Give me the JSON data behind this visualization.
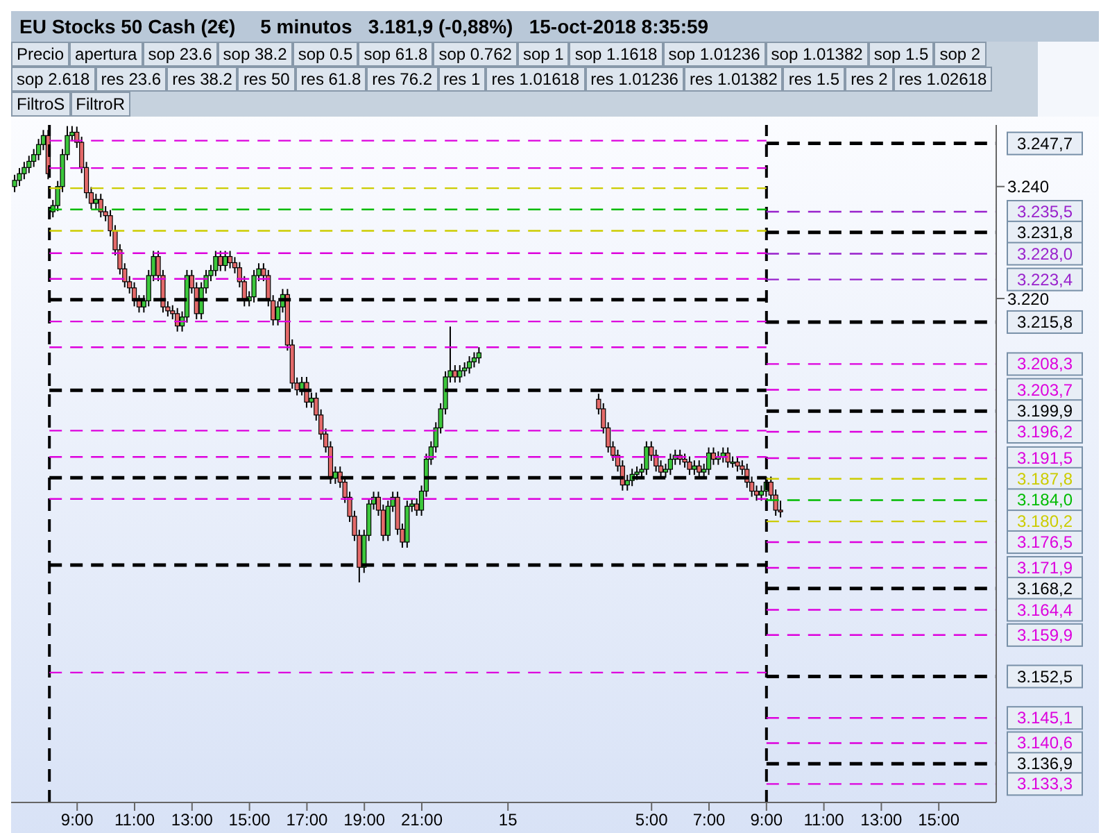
{
  "chart_data": {
    "type": "candlestick",
    "title": "EU Stocks 50 Cash (2€)",
    "subtitle": "5 minutos   3.181,9 (-0,88%)   15-oct-2018 8:35:59",
    "annotations": [
      "Precio",
      "apertura",
      "sop 23.6",
      "sop 38.2",
      "sop 0.5",
      "sop 61.8",
      "sop 0.762",
      "sop 1",
      "sop 1.1618",
      "sop 1.01236",
      "sop 1.01382",
      "sop 1.5",
      "sop 2",
      "sop 2.618",
      "res 23.6",
      "res 38.2",
      "res 50",
      "res 61.8",
      "res 76.2",
      "res 1",
      "res 1.01618",
      "res 1.01236",
      "res 1.01382",
      "res 1.5",
      "res 2",
      "res 1.02618",
      "FiltroS",
      "FiltroR"
    ],
    "xlim": [
      "2018-10-14T06:42",
      "2018-10-15T17:00"
    ],
    "ylim": [
      3130,
      3251
    ],
    "xticks": [
      {
        "value": "2018-10-14T09:00",
        "label": "9:00"
      },
      {
        "value": "2018-10-14T11:00",
        "label": "11:00"
      },
      {
        "value": "2018-10-14T13:00",
        "label": "13:00"
      },
      {
        "value": "2018-10-14T15:00",
        "label": "15:00"
      },
      {
        "value": "2018-10-14T17:00",
        "label": "17:00"
      },
      {
        "value": "2018-10-14T19:00",
        "label": "19:00"
      },
      {
        "value": "2018-10-14T21:00",
        "label": "21:00"
      },
      {
        "value": "2018-10-15T00:00",
        "label": "15"
      },
      {
        "value": "2018-10-15T05:00",
        "label": "5:00"
      },
      {
        "value": "2018-10-15T07:00",
        "label": "7:00"
      },
      {
        "value": "2018-10-15T09:00",
        "label": "9:00"
      },
      {
        "value": "2018-10-15T11:00",
        "label": "11:00"
      },
      {
        "value": "2018-10-15T13:00",
        "label": "13:00"
      },
      {
        "value": "2018-10-15T15:00",
        "label": "15:00"
      }
    ],
    "yticks": [
      {
        "value": 3240,
        "label": "3.240"
      },
      {
        "value": 3220,
        "label": "3.220"
      }
    ],
    "grid": false,
    "x": [
      "2018-10-14T06:50",
      "2018-10-14T07:00",
      "2018-10-14T07:10",
      "2018-10-14T07:20",
      "2018-10-14T07:30",
      "2018-10-14T07:40",
      "2018-10-14T07:50",
      "2018-10-14T08:00",
      "2018-10-14T08:10",
      "2018-10-14T08:20",
      "2018-10-14T08:30",
      "2018-10-14T08:40",
      "2018-10-14T08:50",
      "2018-10-14T09:00",
      "2018-10-14T09:10",
      "2018-10-14T09:20",
      "2018-10-14T09:30",
      "2018-10-14T09:40",
      "2018-10-14T09:50",
      "2018-10-14T10:00",
      "2018-10-14T10:10",
      "2018-10-14T10:20",
      "2018-10-14T10:30",
      "2018-10-14T10:40",
      "2018-10-14T10:50",
      "2018-10-14T11:00",
      "2018-10-14T11:10",
      "2018-10-14T11:20",
      "2018-10-14T11:30",
      "2018-10-14T11:40",
      "2018-10-14T11:50",
      "2018-10-14T12:00",
      "2018-10-14T12:10",
      "2018-10-14T12:20",
      "2018-10-14T12:30",
      "2018-10-14T12:40",
      "2018-10-14T12:50",
      "2018-10-14T13:00",
      "2018-10-14T13:10",
      "2018-10-14T13:20",
      "2018-10-14T13:30",
      "2018-10-14T13:40",
      "2018-10-14T13:50",
      "2018-10-14T14:00",
      "2018-10-14T14:10",
      "2018-10-14T14:20",
      "2018-10-14T14:30",
      "2018-10-14T14:40",
      "2018-10-14T14:50",
      "2018-10-14T15:00",
      "2018-10-14T15:10",
      "2018-10-14T15:20",
      "2018-10-14T15:30",
      "2018-10-14T15:40",
      "2018-10-14T15:50",
      "2018-10-14T16:00",
      "2018-10-14T16:10",
      "2018-10-14T16:20",
      "2018-10-14T16:30",
      "2018-10-14T16:40",
      "2018-10-14T16:50",
      "2018-10-14T17:00",
      "2018-10-14T17:10",
      "2018-10-14T17:20",
      "2018-10-14T17:30",
      "2018-10-14T17:40",
      "2018-10-14T17:50",
      "2018-10-14T18:00",
      "2018-10-14T18:10",
      "2018-10-14T18:20",
      "2018-10-14T18:30",
      "2018-10-14T18:40",
      "2018-10-14T18:50",
      "2018-10-14T19:00",
      "2018-10-14T19:10",
      "2018-10-14T19:20",
      "2018-10-14T19:30",
      "2018-10-14T19:40",
      "2018-10-14T19:50",
      "2018-10-14T20:00",
      "2018-10-14T20:10",
      "2018-10-14T20:20",
      "2018-10-14T20:30",
      "2018-10-14T20:40",
      "2018-10-14T20:50",
      "2018-10-14T21:00",
      "2018-10-14T21:10",
      "2018-10-14T21:20",
      "2018-10-14T21:30",
      "2018-10-14T21:40",
      "2018-10-14T21:50",
      "2018-10-14T22:00",
      "2018-10-14T22:10",
      "2018-10-14T22:20",
      "2018-10-14T22:30",
      "2018-10-14T22:40",
      "2018-10-14T22:50",
      "2018-10-14T23:00",
      "2018-10-15T03:10",
      "2018-10-15T03:20",
      "2018-10-15T03:30",
      "2018-10-15T03:40",
      "2018-10-15T03:50",
      "2018-10-15T04:00",
      "2018-10-15T04:10",
      "2018-10-15T04:20",
      "2018-10-15T04:30",
      "2018-10-15T04:40",
      "2018-10-15T04:50",
      "2018-10-15T05:00",
      "2018-10-15T05:10",
      "2018-10-15T05:20",
      "2018-10-15T05:30",
      "2018-10-15T05:40",
      "2018-10-15T05:50",
      "2018-10-15T06:00",
      "2018-10-15T06:10",
      "2018-10-15T06:20",
      "2018-10-15T06:30",
      "2018-10-15T06:40",
      "2018-10-15T06:50",
      "2018-10-15T07:00",
      "2018-10-15T07:10",
      "2018-10-15T07:20",
      "2018-10-15T07:30",
      "2018-10-15T07:40",
      "2018-10-15T07:50",
      "2018-10-15T08:00",
      "2018-10-15T08:10",
      "2018-10-15T08:20",
      "2018-10-15T08:30",
      "2018-10-15T08:40",
      "2018-10-15T08:50",
      "2018-10-15T09:00",
      "2018-10-15T09:10",
      "2018-10-15T09:20",
      "2018-10-15T09:30"
    ],
    "ohlc": [
      [
        3240.0,
        3242.1,
        3239.0,
        3241.1
      ],
      [
        3241.1,
        3243.3,
        3240.1,
        3242.3
      ],
      [
        3242.3,
        3244.4,
        3241.3,
        3243.4
      ],
      [
        3243.4,
        3245.5,
        3242.4,
        3244.5
      ],
      [
        3244.5,
        3246.7,
        3243.5,
        3245.7
      ],
      [
        3245.7,
        3248.5,
        3244.7,
        3247.5
      ],
      [
        3247.5,
        3250.1,
        3246.5,
        3249.1
      ],
      [
        3249.1,
        3250.1,
        3241.3,
        3242.3
      ],
      [
        3235.5,
        3237.6,
        3234.5,
        3236.6
      ],
      [
        3236.6,
        3241.0,
        3235.6,
        3240.0
      ],
      [
        3240.0,
        3246.7,
        3239.0,
        3245.7
      ],
      [
        3245.7,
        3250.8,
        3244.7,
        3249.1
      ],
      [
        3249.1,
        3250.8,
        3248.1,
        3249.7
      ],
      [
        3249.7,
        3250.7,
        3246.9,
        3247.9
      ],
      [
        3247.9,
        3248.9,
        3242.4,
        3243.4
      ],
      [
        3243.4,
        3244.4,
        3237.9,
        3238.9
      ],
      [
        3238.9,
        3239.9,
        3236.0,
        3237.0
      ],
      [
        3237.0,
        3238.7,
        3236.0,
        3237.7
      ],
      [
        3237.7,
        3238.7,
        3234.5,
        3235.5
      ],
      [
        3235.5,
        3236.5,
        3233.8,
        3234.8
      ],
      [
        3234.8,
        3235.8,
        3231.1,
        3232.1
      ],
      [
        3232.1,
        3233.1,
        3227.7,
        3228.7
      ],
      [
        3228.7,
        3229.7,
        3224.3,
        3225.3
      ],
      [
        3225.3,
        3226.3,
        3222.0,
        3223.0
      ],
      [
        3223.0,
        3224.0,
        3220.9,
        3221.9
      ],
      [
        3221.9,
        3222.9,
        3218.6,
        3219.6
      ],
      [
        3219.6,
        3220.6,
        3217.5,
        3218.5
      ],
      [
        3218.5,
        3220.6,
        3217.5,
        3219.6
      ],
      [
        3219.6,
        3225.1,
        3218.6,
        3224.1
      ],
      [
        3224.1,
        3228.5,
        3223.1,
        3227.5
      ],
      [
        3227.5,
        3228.5,
        3223.1,
        3224.1
      ],
      [
        3224.1,
        3225.1,
        3217.5,
        3218.5
      ],
      [
        3218.5,
        3219.5,
        3216.8,
        3217.8
      ],
      [
        3217.8,
        3218.8,
        3216.3,
        3217.3
      ],
      [
        3217.3,
        3218.3,
        3214.1,
        3215.1
      ],
      [
        3215.1,
        3217.7,
        3214.1,
        3216.7
      ],
      [
        3216.7,
        3225.1,
        3215.7,
        3224.1
      ],
      [
        3224.1,
        3225.1,
        3220.9,
        3221.9
      ],
      [
        3221.9,
        3222.9,
        3216.3,
        3217.3
      ],
      [
        3217.3,
        3222.9,
        3216.3,
        3221.9
      ],
      [
        3221.9,
        3225.1,
        3220.9,
        3224.1
      ],
      [
        3224.1,
        3226.0,
        3223.1,
        3225.0
      ],
      [
        3225.0,
        3228.5,
        3224.0,
        3227.5
      ],
      [
        3227.5,
        3228.5,
        3224.9,
        3225.9
      ],
      [
        3225.9,
        3228.5,
        3224.9,
        3227.5
      ],
      [
        3227.5,
        3228.5,
        3225.4,
        3226.4
      ],
      [
        3226.4,
        3227.4,
        3224.5,
        3225.5
      ],
      [
        3225.5,
        3226.5,
        3222.0,
        3223.0
      ],
      [
        3223.0,
        3224.0,
        3218.6,
        3219.6
      ],
      [
        3219.6,
        3221.3,
        3218.6,
        3220.3
      ],
      [
        3220.3,
        3225.1,
        3219.3,
        3224.1
      ],
      [
        3224.1,
        3226.3,
        3223.1,
        3225.3
      ],
      [
        3225.3,
        3226.3,
        3223.1,
        3224.1
      ],
      [
        3224.1,
        3225.1,
        3218.6,
        3219.6
      ],
      [
        3219.6,
        3220.6,
        3215.2,
        3216.2
      ],
      [
        3216.2,
        3219.5,
        3215.2,
        3218.5
      ],
      [
        3218.5,
        3221.7,
        3217.5,
        3220.7
      ],
      [
        3220.7,
        3221.7,
        3210.7,
        3211.7
      ],
      [
        3211.7,
        3212.7,
        3203.9,
        3204.9
      ],
      [
        3204.9,
        3205.9,
        3202.7,
        3203.7
      ],
      [
        3203.7,
        3206.0,
        3202.7,
        3205.0
      ],
      [
        3205.0,
        3206.0,
        3200.5,
        3201.5
      ],
      [
        3201.5,
        3203.2,
        3200.5,
        3202.2
      ],
      [
        3202.2,
        3203.2,
        3198.2,
        3199.2
      ],
      [
        3199.2,
        3200.2,
        3194.8,
        3195.8
      ],
      [
        3195.8,
        3196.8,
        3192.5,
        3193.5
      ],
      [
        3193.5,
        3194.5,
        3186.9,
        3187.9
      ],
      [
        3187.9,
        3190.0,
        3186.9,
        3189.0
      ],
      [
        3189.0,
        3190.0,
        3186.2,
        3187.2
      ],
      [
        3187.2,
        3188.2,
        3183.5,
        3184.5
      ],
      [
        3184.5,
        3185.5,
        3180.1,
        3181.1
      ],
      [
        3181.1,
        3182.1,
        3176.7,
        3177.7
      ],
      [
        3177.7,
        3178.7,
        3169.3,
        3172.0
      ],
      [
        3172.0,
        3178.7,
        3171.0,
        3177.7
      ],
      [
        3177.7,
        3184.3,
        3176.7,
        3183.3
      ],
      [
        3183.3,
        3185.5,
        3182.3,
        3184.5
      ],
      [
        3184.5,
        3185.5,
        3181.2,
        3182.2
      ],
      [
        3182.2,
        3183.2,
        3176.7,
        3177.7
      ],
      [
        3177.7,
        3183.9,
        3176.7,
        3182.9
      ],
      [
        3182.9,
        3185.5,
        3181.9,
        3184.5
      ],
      [
        3184.5,
        3185.5,
        3177.8,
        3178.8
      ],
      [
        3178.8,
        3179.8,
        3175.5,
        3176.5
      ],
      [
        3176.5,
        3183.9,
        3175.5,
        3182.9
      ],
      [
        3182.9,
        3184.3,
        3181.9,
        3183.3
      ],
      [
        3183.3,
        3184.3,
        3181.2,
        3182.2
      ],
      [
        3182.2,
        3186.6,
        3181.2,
        3185.6
      ],
      [
        3185.6,
        3192.3,
        3184.6,
        3191.3
      ],
      [
        3191.3,
        3194.5,
        3190.3,
        3193.5
      ],
      [
        3193.5,
        3197.9,
        3192.5,
        3196.9
      ],
      [
        3196.9,
        3201.3,
        3195.9,
        3200.3
      ],
      [
        3200.3,
        3207.0,
        3199.3,
        3206.0
      ],
      [
        3206.0,
        3215.0,
        3205.0,
        3207.1
      ],
      [
        3207.1,
        3208.1,
        3205.0,
        3206.0
      ],
      [
        3206.0,
        3208.1,
        3205.0,
        3207.1
      ],
      [
        3207.1,
        3208.6,
        3206.1,
        3207.6
      ],
      [
        3207.6,
        3209.7,
        3206.6,
        3208.7
      ],
      [
        3208.7,
        3210.4,
        3207.7,
        3209.4
      ],
      [
        3209.4,
        3211.3,
        3208.4,
        3210.3
      ],
      [
        3202.0,
        3203.0,
        3199.3,
        3200.3
      ],
      [
        3200.3,
        3201.3,
        3195.9,
        3196.9
      ],
      [
        3196.9,
        3197.9,
        3192.5,
        3193.5
      ],
      [
        3193.5,
        3194.5,
        3191.0,
        3192.0
      ],
      [
        3192.0,
        3193.0,
        3189.1,
        3190.1
      ],
      [
        3190.1,
        3191.1,
        3185.7,
        3186.7
      ],
      [
        3186.7,
        3188.5,
        3185.7,
        3187.5
      ],
      [
        3187.5,
        3189.6,
        3186.5,
        3188.6
      ],
      [
        3188.6,
        3190.0,
        3187.6,
        3189.0
      ],
      [
        3189.0,
        3190.5,
        3188.0,
        3189.5
      ],
      [
        3189.5,
        3194.5,
        3188.5,
        3193.5
      ],
      [
        3193.5,
        3194.5,
        3191.0,
        3192.0
      ],
      [
        3192.0,
        3193.0,
        3189.1,
        3190.1
      ],
      [
        3190.1,
        3191.1,
        3188.0,
        3189.0
      ],
      [
        3189.0,
        3190.5,
        3188.0,
        3189.5
      ],
      [
        3189.5,
        3192.3,
        3188.5,
        3191.3
      ],
      [
        3191.3,
        3193.0,
        3190.3,
        3192.0
      ],
      [
        3192.0,
        3193.0,
        3190.3,
        3191.3
      ],
      [
        3191.3,
        3192.3,
        3189.8,
        3190.8
      ],
      [
        3190.8,
        3191.8,
        3188.5,
        3189.5
      ],
      [
        3189.5,
        3191.1,
        3188.5,
        3190.1
      ],
      [
        3190.1,
        3191.1,
        3188.0,
        3189.0
      ],
      [
        3189.0,
        3190.5,
        3188.0,
        3189.5
      ],
      [
        3189.5,
        3193.4,
        3188.5,
        3192.4
      ],
      [
        3192.4,
        3193.4,
        3190.3,
        3191.3
      ],
      [
        3191.3,
        3192.7,
        3190.3,
        3191.7
      ],
      [
        3191.7,
        3193.4,
        3190.7,
        3192.4
      ],
      [
        3192.4,
        3193.4,
        3189.8,
        3190.8
      ],
      [
        3190.8,
        3191.8,
        3189.8,
        3190.8
      ],
      [
        3190.8,
        3191.8,
        3189.1,
        3190.1
      ],
      [
        3190.1,
        3191.1,
        3188.5,
        3189.5
      ],
      [
        3189.5,
        3190.5,
        3186.2,
        3187.2
      ],
      [
        3187.2,
        3188.2,
        3184.6,
        3185.6
      ],
      [
        3185.6,
        3186.6,
        3183.9,
        3184.9
      ],
      [
        3184.9,
        3186.6,
        3183.9,
        3185.6
      ],
      [
        3185.6,
        3188.2,
        3184.6,
        3187.2
      ],
      [
        3187.2,
        3188.2,
        3183.9,
        3184.9
      ],
      [
        3184.9,
        3185.9,
        3181.2,
        3182.2
      ],
      [
        3182.2,
        3183.9,
        3180.9,
        3181.9
      ]
    ],
    "ref_lines": [
      {
        "axis": "x",
        "value": "2018-10-14T08:02",
        "color": "#000000",
        "line_style": "dashed"
      },
      {
        "axis": "x",
        "value": "2018-10-15T09:00",
        "color": "#000000",
        "line_style": "dashed"
      },
      {
        "axis": "y",
        "value": 3248.2,
        "color": "#dd00dd",
        "line_style": "dashed"
      },
      {
        "axis": "y",
        "value": 3243.3,
        "color": "#dd00dd",
        "line_style": "dashed"
      },
      {
        "axis": "y",
        "value": 3239.7,
        "color": "#cccc00",
        "line_style": "dashed"
      },
      {
        "axis": "y",
        "value": 3235.9,
        "color": "#00bb00",
        "line_style": "dashed"
      },
      {
        "axis": "y",
        "value": 3232.1,
        "color": "#cccc00",
        "line_style": "dashed"
      },
      {
        "axis": "y",
        "value": 3228.1,
        "color": "#dd00dd",
        "line_style": "dashed"
      },
      {
        "axis": "y",
        "value": 3223.5,
        "color": "#dd00dd",
        "line_style": "dashed"
      },
      {
        "axis": "y",
        "value": 3219.8,
        "color": "#000000",
        "line_style": "dashed"
      },
      {
        "axis": "y",
        "value": 3215.9,
        "color": "#dd00dd",
        "line_style": "dashed"
      },
      {
        "axis": "y",
        "value": 3211.3,
        "color": "#dd00dd",
        "line_style": "dashed"
      },
      {
        "axis": "y",
        "value": 3203.6,
        "color": "#000000",
        "line_style": "dashed"
      },
      {
        "axis": "y",
        "value": 3196.4,
        "color": "#dd00dd",
        "line_style": "dashed"
      },
      {
        "axis": "y",
        "value": 3191.7,
        "color": "#dd00dd",
        "line_style": "dashed"
      },
      {
        "axis": "y",
        "value": 3188.0,
        "color": "#000000",
        "line_style": "dashed"
      },
      {
        "axis": "y",
        "value": 3184.2,
        "color": "#dd00dd",
        "line_style": "dashed"
      },
      {
        "axis": "y",
        "value": 3172.4,
        "color": "#000000",
        "line_style": "dashed"
      },
      {
        "axis": "y",
        "value": 3153.2,
        "color": "#dd00dd",
        "line_style": "dashed"
      },
      {
        "axis": "y",
        "value": 3247.7,
        "label": "3.247,7",
        "color": "#000000",
        "line_style": "dashed"
      },
      {
        "axis": "y",
        "value": 3235.5,
        "label": "3.235,5",
        "color": "#9922cc",
        "line_style": "dashed"
      },
      {
        "axis": "y",
        "value": 3231.8,
        "label": "3.231,8",
        "color": "#000000",
        "line_style": "dashed"
      },
      {
        "axis": "y",
        "value": 3228.0,
        "label": "3.228,0",
        "color": "#9922cc",
        "line_style": "dashed"
      },
      {
        "axis": "y",
        "value": 3223.4,
        "label": "3.223,4",
        "color": "#9922cc",
        "line_style": "dashed"
      },
      {
        "axis": "y",
        "value": 3215.8,
        "label": "3.215,8",
        "color": "#000000",
        "line_style": "dashed"
      },
      {
        "axis": "y",
        "value": 3208.3,
        "label": "3.208,3",
        "color": "#dd00dd",
        "line_style": "dashed"
      },
      {
        "axis": "y",
        "value": 3203.7,
        "label": "3.203,7",
        "color": "#dd00dd",
        "line_style": "dashed"
      },
      {
        "axis": "y",
        "value": 3199.9,
        "label": "3.199,9",
        "color": "#000000",
        "line_style": "dashed"
      },
      {
        "axis": "y",
        "value": 3196.2,
        "label": "3.196,2",
        "color": "#dd00dd",
        "line_style": "dashed"
      },
      {
        "axis": "y",
        "value": 3191.5,
        "label": "3.191,5",
        "color": "#dd00dd",
        "line_style": "dashed"
      },
      {
        "axis": "y",
        "value": 3187.8,
        "label": "3.187,8",
        "color": "#cccc00",
        "line_style": "dashed"
      },
      {
        "axis": "y",
        "value": 3184.0,
        "label": "3.184,0",
        "color": "#00bb00",
        "line_style": "dashed"
      },
      {
        "axis": "y",
        "value": 3180.2,
        "label": "3.180,2",
        "color": "#cccc00",
        "line_style": "dashed"
      },
      {
        "axis": "y",
        "value": 3176.5,
        "label": "3.176,5",
        "color": "#dd00dd",
        "line_style": "dashed"
      },
      {
        "axis": "y",
        "value": 3171.9,
        "label": "3.171,9",
        "color": "#dd00dd",
        "line_style": "dashed"
      },
      {
        "axis": "y",
        "value": 3168.2,
        "label": "3.168,2",
        "color": "#000000",
        "line_style": "dashed"
      },
      {
        "axis": "y",
        "value": 3164.4,
        "label": "3.164,4",
        "color": "#dd00dd",
        "line_style": "dashed"
      },
      {
        "axis": "y",
        "value": 3159.9,
        "label": "3.159,9",
        "color": "#dd00dd",
        "line_style": "dashed"
      },
      {
        "axis": "y",
        "value": 3152.5,
        "label": "3.152,5",
        "color": "#000000",
        "line_style": "dashed"
      },
      {
        "axis": "y",
        "value": 3145.1,
        "label": "3.145,1",
        "color": "#dd00dd",
        "line_style": "dashed"
      },
      {
        "axis": "y",
        "value": 3140.6,
        "label": "3.140,6",
        "color": "#dd00dd",
        "line_style": "dashed"
      },
      {
        "axis": "y",
        "value": 3136.9,
        "label": "3.136,9",
        "color": "#000000",
        "line_style": "dashed"
      },
      {
        "axis": "y",
        "value": 3133.3,
        "label": "3.133,3",
        "color": "#dd00dd",
        "line_style": "dashed"
      }
    ]
  }
}
